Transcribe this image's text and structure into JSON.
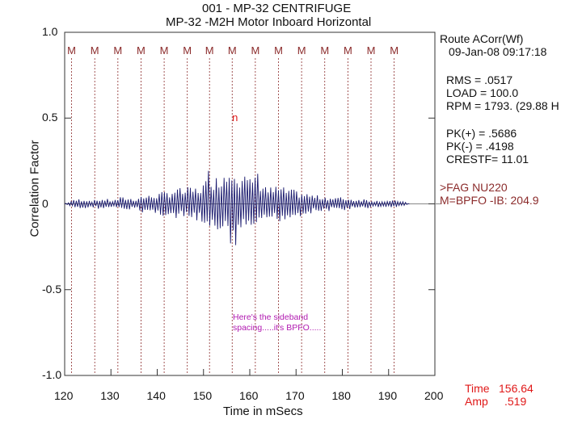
{
  "header": {
    "line1": "001 - MP-32 CENTRIFUGE",
    "line2": "MP-32     -M2H   Motor Inboard Horizontal"
  },
  "info_panel": {
    "title": "Route ACorr(Wf)",
    "date": "09-Jan-08  09:17:18",
    "rms": "RMS = .0517",
    "load": "LOAD = 100.0",
    "rpm": "RPM = 1793. (29.88 H",
    "pk_plus": "PK(+) = .5686",
    "pk_minus": "PK(-) = .4198",
    "crestf": "CRESTF= 11.01",
    "flag": ">FAG NU220",
    "bpfo": "M=BPFO -IB: 204.9"
  },
  "cursor_readout": {
    "time_label": "Time",
    "time_value": "156.64",
    "amp_label": "Amp",
    "amp_value": ".519"
  },
  "annotation": {
    "line1": "Here's the sideband",
    "line2": "spacing.....it's BPFO....."
  },
  "colors": {
    "trace": "#1a1a6e",
    "marker": "#8b2b2b",
    "cursor_readout": "#e01818",
    "annotation": "#b11ab1"
  },
  "chart_data": {
    "type": "line",
    "title": "",
    "xlabel": "Time in mSecs",
    "ylabel": "Correlation Factor",
    "xlim": [
      120,
      200
    ],
    "ylim": [
      -1.0,
      1.0
    ],
    "x_ticks": [
      120,
      130,
      140,
      150,
      160,
      170,
      180,
      190,
      200
    ],
    "y_ticks": [
      {
        "value": 1.0,
        "label": "1.0"
      },
      {
        "value": 0.5,
        "label": "0.5"
      },
      {
        "value": 0.0,
        "label": "0"
      },
      {
        "value": -0.5,
        "label": "-0.5"
      },
      {
        "value": -1.0,
        "label": "-1.0"
      }
    ],
    "marker_label": "M",
    "marker_times": [
      121.5,
      126.5,
      131.5,
      136.5,
      141.5,
      146.5,
      151.3,
      156.2,
      161.2,
      166.2,
      171.2,
      176.2,
      181.2,
      186.2,
      191.2
    ],
    "cursor_marker": {
      "x": 156.64,
      "y": 0.519,
      "label": "n"
    },
    "grid": false,
    "series": [
      {
        "x_start": 120,
        "x_end": 194.5,
        "points": [
          [
            120.0,
            0.0
          ],
          [
            121.5,
            0.02
          ],
          [
            123.0,
            -0.03
          ],
          [
            124.5,
            0.03
          ],
          [
            126.0,
            -0.02
          ],
          [
            127.5,
            0.03
          ],
          [
            129.0,
            -0.03
          ],
          [
            130.5,
            0.02
          ],
          [
            132.0,
            -0.04
          ],
          [
            133.5,
            0.04
          ],
          [
            135.0,
            -0.03
          ],
          [
            136.5,
            0.05
          ],
          [
            138.0,
            -0.05
          ],
          [
            139.5,
            0.06
          ],
          [
            141.0,
            -0.07
          ],
          [
            142.5,
            0.08
          ],
          [
            144.0,
            -0.1
          ],
          [
            145.5,
            0.09
          ],
          [
            147.0,
            -0.1
          ],
          [
            148.5,
            0.1
          ],
          [
            149.5,
            -0.12
          ],
          [
            150.5,
            0.14
          ],
          [
            151.3,
            0.24
          ],
          [
            152.0,
            -0.18
          ],
          [
            153.0,
            0.16
          ],
          [
            154.0,
            -0.22
          ],
          [
            155.0,
            0.2
          ],
          [
            155.7,
            -0.26
          ],
          [
            156.2,
            0.26
          ],
          [
            156.8,
            -0.34
          ],
          [
            157.5,
            0.18
          ],
          [
            158.5,
            -0.2
          ],
          [
            159.5,
            0.16
          ],
          [
            160.5,
            -0.14
          ],
          [
            161.2,
            0.24
          ],
          [
            162.0,
            -0.16
          ],
          [
            163.0,
            0.14
          ],
          [
            164.0,
            -0.1
          ],
          [
            165.0,
            0.1
          ],
          [
            166.2,
            -0.11
          ],
          [
            167.0,
            0.1
          ],
          [
            168.5,
            -0.09
          ],
          [
            170.0,
            0.08
          ],
          [
            171.5,
            -0.07
          ],
          [
            173.0,
            0.06
          ],
          [
            174.5,
            -0.05
          ],
          [
            176.0,
            0.05
          ],
          [
            177.5,
            -0.04
          ],
          [
            179.0,
            0.04
          ],
          [
            180.5,
            -0.04
          ],
          [
            182.0,
            0.03
          ],
          [
            183.5,
            -0.03
          ],
          [
            185.0,
            0.03
          ],
          [
            186.5,
            -0.02
          ],
          [
            188.0,
            0.02
          ],
          [
            189.5,
            -0.02
          ],
          [
            191.0,
            0.02
          ],
          [
            192.5,
            -0.02
          ],
          [
            194.5,
            0.0
          ]
        ]
      }
    ]
  }
}
